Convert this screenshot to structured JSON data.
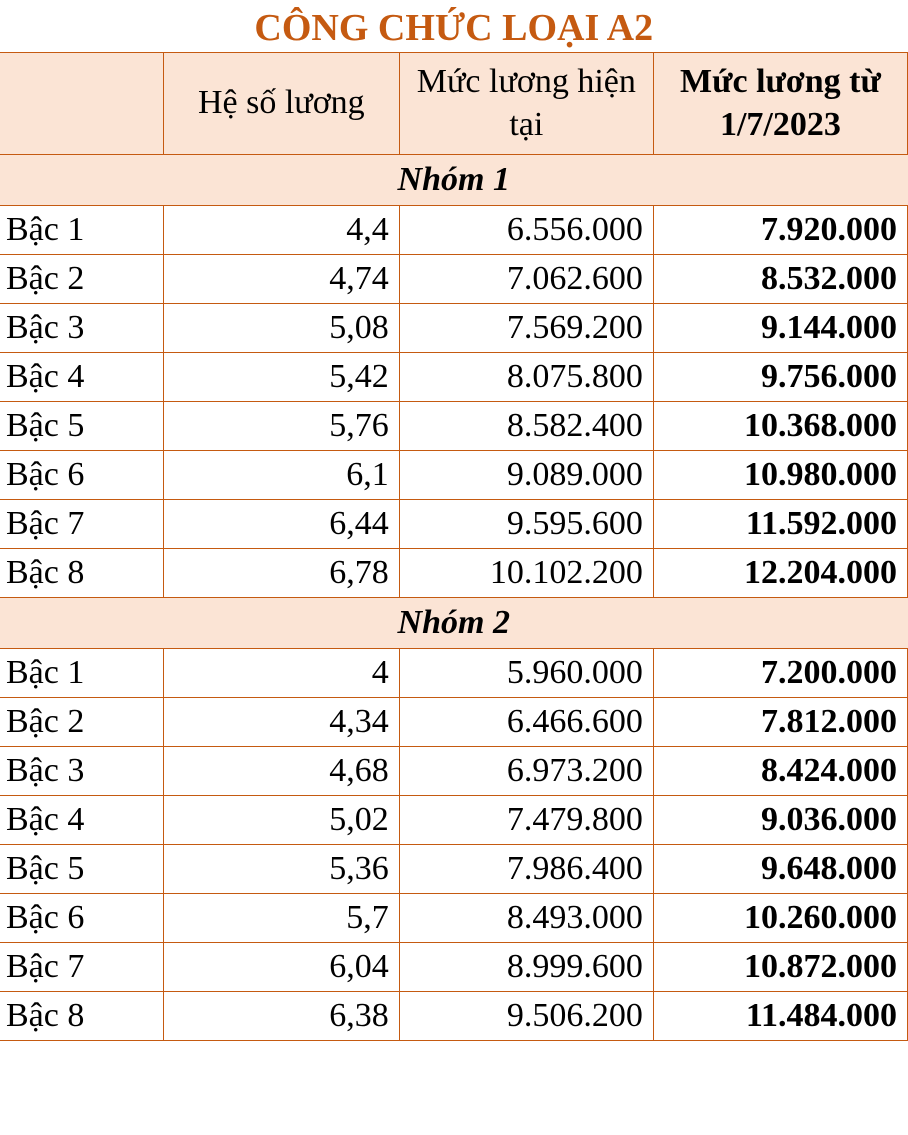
{
  "title": "CÔNG CHỨC LOẠI A2",
  "columns": {
    "c1": "",
    "c2": "Hệ số lương",
    "c3": "Mức lương hiện tại",
    "c4": "Mức lương từ 1/7/2023"
  },
  "groups": [
    {
      "name": "Nhóm 1",
      "rows": [
        {
          "label": "Bậc 1",
          "coef": "4,4",
          "current": "6.556.000",
          "new": "7.920.000"
        },
        {
          "label": "Bậc 2",
          "coef": "4,74",
          "current": "7.062.600",
          "new": "8.532.000"
        },
        {
          "label": "Bậc 3",
          "coef": "5,08",
          "current": "7.569.200",
          "new": "9.144.000"
        },
        {
          "label": "Bậc 4",
          "coef": "5,42",
          "current": "8.075.800",
          "new": "9.756.000"
        },
        {
          "label": "Bậc 5",
          "coef": "5,76",
          "current": "8.582.400",
          "new": "10.368.000"
        },
        {
          "label": "Bậc 6",
          "coef": "6,1",
          "current": "9.089.000",
          "new": "10.980.000"
        },
        {
          "label": "Bậc 7",
          "coef": "6,44",
          "current": "9.595.600",
          "new": "11.592.000"
        },
        {
          "label": "Bậc 8",
          "coef": "6,78",
          "current": "10.102.200",
          "new": "12.204.000"
        }
      ]
    },
    {
      "name": "Nhóm 2",
      "rows": [
        {
          "label": "Bậc 1",
          "coef": "4",
          "current": "5.960.000",
          "new": "7.200.000"
        },
        {
          "label": "Bậc 2",
          "coef": "4,34",
          "current": "6.466.600",
          "new": "7.812.000"
        },
        {
          "label": "Bậc 3",
          "coef": "4,68",
          "current": "6.973.200",
          "new": "8.424.000"
        },
        {
          "label": "Bậc 4",
          "coef": "5,02",
          "current": "7.479.800",
          "new": "9.036.000"
        },
        {
          "label": "Bậc 5",
          "coef": "5,36",
          "current": "7.986.400",
          "new": "9.648.000"
        },
        {
          "label": "Bậc 6",
          "coef": "5,7",
          "current": "8.493.000",
          "new": "10.260.000"
        },
        {
          "label": "Bậc 7",
          "coef": "6,04",
          "current": "8.999.600",
          "new": "10.872.000"
        },
        {
          "label": "Bậc 8",
          "coef": "6,38",
          "current": "9.506.200",
          "new": "11.484.000"
        }
      ]
    }
  ],
  "style": {
    "title_color": "#c55a11",
    "header_bg": "#fbe4d5",
    "border_color": "#c55a11",
    "background": "#ffffff",
    "title_fontsize": 38,
    "cell_fontsize": 34
  }
}
